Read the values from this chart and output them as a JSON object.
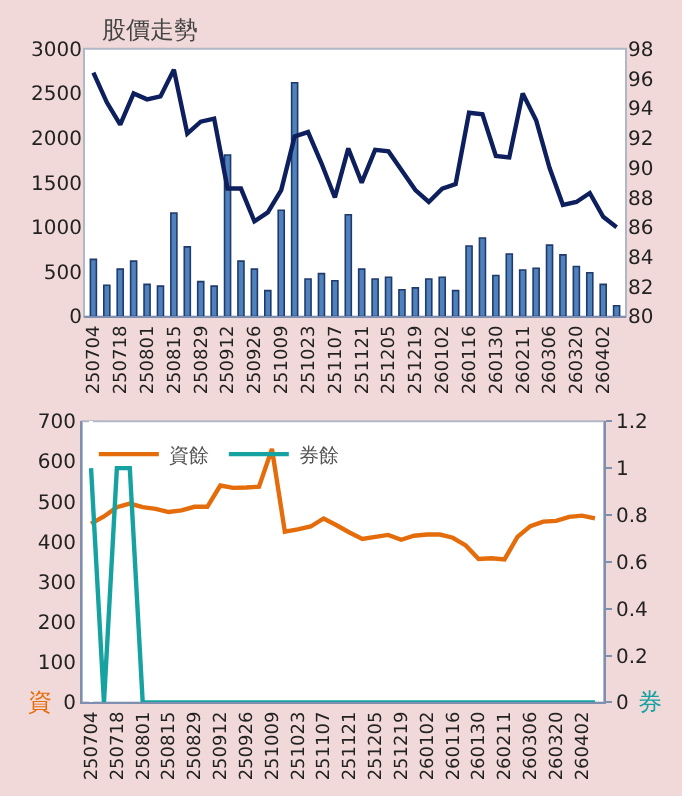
{
  "chart_data": [
    {
      "type": "bar",
      "title": "股價走勢",
      "categories": [
        "250704",
        null,
        "250718",
        null,
        "250801",
        null,
        "250815",
        null,
        "250829",
        null,
        "250912",
        null,
        "250926",
        null,
        "251009",
        null,
        "251023",
        null,
        "251107",
        null,
        "251121",
        null,
        "251205",
        null,
        "251219",
        null,
        "260102",
        null,
        "260116",
        null,
        "260130",
        null,
        "260211",
        null,
        "260306",
        null,
        "260320",
        null,
        "260402",
        null
      ],
      "series": [
        {
          "type": "bar",
          "color": "#4f81bd",
          "values": [
            640,
            350,
            530,
            620,
            360,
            340,
            1160,
            780,
            390,
            340,
            1810,
            620,
            530,
            290,
            1190,
            2620,
            420,
            480,
            400,
            1140,
            530,
            420,
            440,
            300,
            320,
            420,
            440,
            290,
            790,
            880,
            460,
            700,
            520,
            540,
            800,
            690,
            560,
            490,
            360,
            120
          ]
        },
        {
          "type": "line",
          "axis": "y2",
          "color": "#0d1f5c",
          "values": [
            96.4,
            94.4,
            92.9,
            95.0,
            94.6,
            94.8,
            96.6,
            92.3,
            93.1,
            93.3,
            88.6,
            88.6,
            86.4,
            87.0,
            88.5,
            92.1,
            92.4,
            90.3,
            88.0,
            91.3,
            89.0,
            91.2,
            91.1,
            89.8,
            88.5,
            87.7,
            88.6,
            88.9,
            93.7,
            93.6,
            90.8,
            90.7,
            95.0,
            93.2,
            90.0,
            87.5,
            87.7,
            88.3,
            86.7,
            86.0
          ]
        }
      ],
      "ylim": [
        0,
        3000
      ],
      "yticks": [
        0,
        500,
        1000,
        1500,
        2000,
        2500,
        3000
      ],
      "y2lim": [
        80,
        98
      ],
      "y2ticks": [
        80,
        82,
        84,
        86,
        88,
        90,
        92,
        94,
        96,
        98
      ],
      "grid": false,
      "legend": false,
      "marker": "none"
    },
    {
      "type": "line",
      "ylabel": "資",
      "y2label": "券",
      "categories": [
        "250704",
        null,
        "250718",
        null,
        "250801",
        null,
        "250815",
        null,
        "250829",
        null,
        "250912",
        null,
        "250926",
        null,
        "251009",
        null,
        "251023",
        null,
        "251107",
        null,
        "251121",
        null,
        "251205",
        null,
        "251219",
        null,
        "260102",
        null,
        "260116",
        null,
        "260130",
        null,
        "260211",
        null,
        "260306",
        null,
        "260320",
        null,
        "260402",
        null
      ],
      "series": [
        {
          "name": "資餘",
          "color": "#e46c0a",
          "values": [
            445,
            463,
            486,
            495,
            486,
            482,
            474,
            478,
            487,
            487,
            540,
            534,
            535,
            537,
            631,
            425,
            431,
            438,
            458,
            441,
            423,
            407,
            412,
            417,
            405,
            415,
            418,
            418,
            410,
            391,
            357,
            359,
            356,
            412,
            439,
            450,
            452,
            462,
            465,
            458
          ]
        },
        {
          "name": "券餘",
          "axis": "y2",
          "color": "#17a2a2",
          "values": [
            1,
            0,
            1,
            1,
            0,
            0,
            0,
            0,
            0,
            0,
            0,
            0,
            0,
            0,
            0,
            0,
            0,
            0,
            0,
            0,
            0,
            0,
            0,
            0,
            0,
            0,
            0,
            0,
            0,
            0,
            0,
            0,
            0,
            0,
            0,
            0,
            0,
            0,
            0,
            0
          ]
        }
      ],
      "ylim": [
        0,
        700
      ],
      "yticks": [
        0,
        100,
        200,
        300,
        400,
        500,
        600,
        700
      ],
      "y2lim": [
        0,
        1.2
      ],
      "y2ticks": [
        0,
        0.2,
        0.4,
        0.6,
        0.8,
        1,
        1.2
      ],
      "grid": false,
      "legend": "top left",
      "marker": "none"
    }
  ]
}
